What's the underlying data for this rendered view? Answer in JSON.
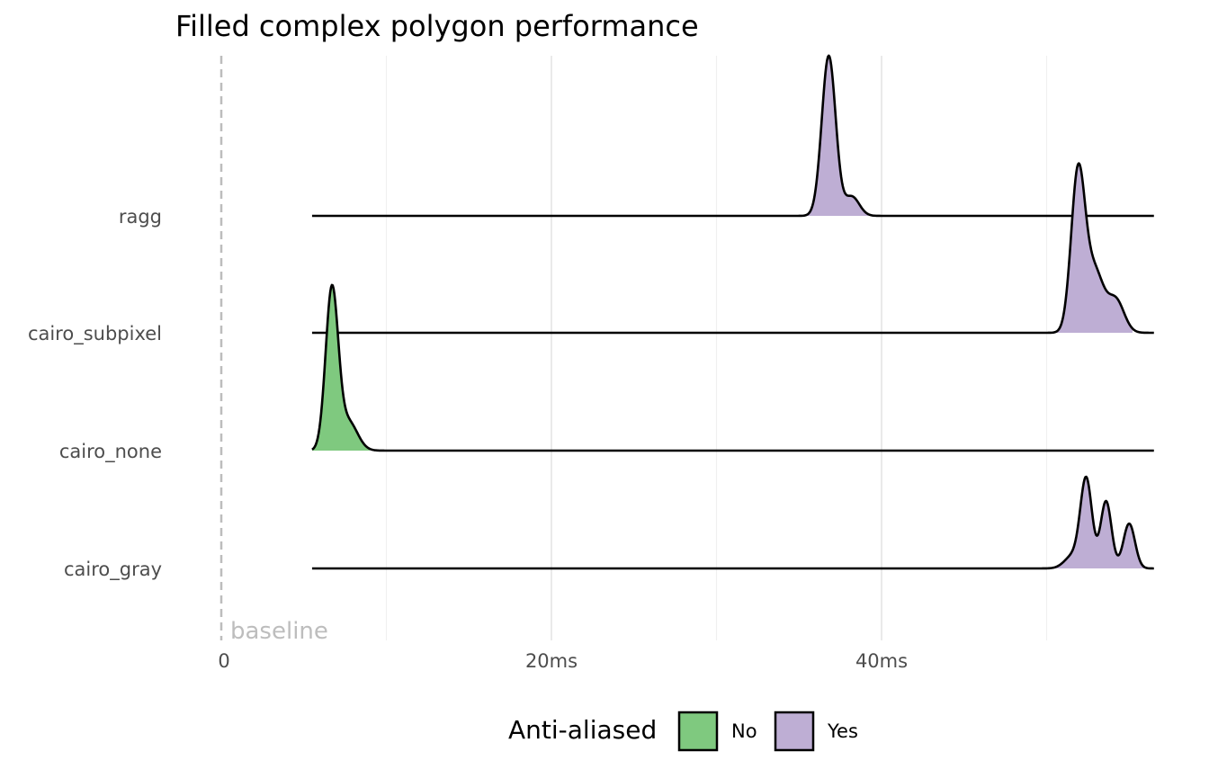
{
  "chart_data": {
    "type": "ridgeline",
    "title": "Filled complex polygon performance",
    "xlabel": "",
    "ylabel": "",
    "x_range_ms": [
      0,
      56.5
    ],
    "x_ticks": [
      {
        "value": 0,
        "label": "0"
      },
      {
        "value": 20,
        "label": "20ms"
      },
      {
        "value": 40,
        "label": "40ms"
      }
    ],
    "minor_grid_ms": [
      10,
      30,
      50
    ],
    "baseline": {
      "value": 0,
      "label": "baseline",
      "style": "dashed"
    },
    "categories": [
      "ragg",
      "cairo_subpixel",
      "cairo_none",
      "cairo_gray"
    ],
    "density_range_ms": [
      5.5,
      56.5
    ],
    "series": [
      {
        "name": "ragg",
        "anti_aliased": "Yes",
        "fill_range_ms": [
          35.3,
          39.2
        ],
        "peaks": [
          {
            "ms": 36.8,
            "height": 1.0,
            "sd": 0.42
          },
          {
            "ms": 38.2,
            "height": 0.12,
            "sd": 0.45
          }
        ]
      },
      {
        "name": "cairo_subpixel",
        "anti_aliased": "Yes",
        "fill_range_ms": [
          50.6,
          55.2
        ],
        "peaks": [
          {
            "ms": 51.9,
            "height": 0.98,
            "sd": 0.42
          },
          {
            "ms": 52.9,
            "height": 0.38,
            "sd": 0.55
          },
          {
            "ms": 54.2,
            "height": 0.2,
            "sd": 0.5
          }
        ]
      },
      {
        "name": "cairo_none",
        "anti_aliased": "No",
        "fill_range_ms": [
          5.5,
          9.0
        ],
        "peaks": [
          {
            "ms": 6.7,
            "height": 1.0,
            "sd": 0.38
          },
          {
            "ms": 7.7,
            "height": 0.18,
            "sd": 0.55
          }
        ]
      },
      {
        "name": "cairo_gray",
        "anti_aliased": "Yes",
        "fill_range_ms": [
          50.5,
          56.5
        ],
        "peaks": [
          {
            "ms": 52.4,
            "height": 0.55,
            "sd": 0.35
          },
          {
            "ms": 53.6,
            "height": 0.42,
            "sd": 0.33
          },
          {
            "ms": 55.0,
            "height": 0.28,
            "sd": 0.35
          },
          {
            "ms": 51.6,
            "height": 0.08,
            "sd": 0.5
          }
        ]
      }
    ],
    "legend": {
      "title": "Anti-aliased",
      "position": "bottom",
      "items": [
        {
          "label": "No",
          "color": "#7fc97f"
        },
        {
          "label": "Yes",
          "color": "#beaed4"
        }
      ]
    },
    "colors": {
      "No": "#7fc97f",
      "Yes": "#beaed4",
      "outline": "#000000"
    },
    "grid": true
  }
}
